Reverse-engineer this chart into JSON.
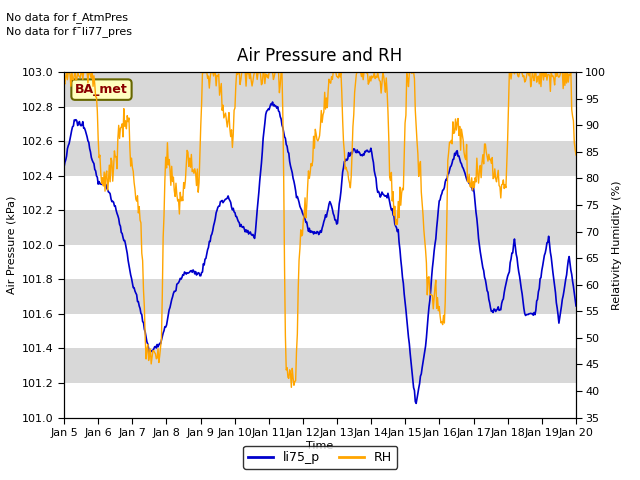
{
  "title": "Air Pressure and RH",
  "xlabel": "Time",
  "ylabel_left": "Air Pressure (kPa)",
  "ylabel_right": "Relativity Humidity (%)",
  "annotation_line1": "No data for f_AtmPres",
  "annotation_line2": "No data for f¯li77_pres",
  "station_label": "BA_met",
  "legend_labels": [
    "li75_p",
    "RH"
  ],
  "line_color_pressure": "#0000CC",
  "line_color_rh": "#FFA500",
  "bg_color": "#D8D8D8",
  "ylim_left": [
    101.0,
    103.0
  ],
  "ylim_right": [
    35,
    100
  ],
  "yticks_left": [
    101.0,
    101.2,
    101.4,
    101.6,
    101.8,
    102.0,
    102.2,
    102.4,
    102.6,
    102.8,
    103.0
  ],
  "yticks_right": [
    35,
    40,
    45,
    50,
    55,
    60,
    65,
    70,
    75,
    80,
    85,
    90,
    95,
    100
  ],
  "x_tick_labels": [
    "Jan 5",
    "Jan 6",
    "Jan 7",
    "Jan 8",
    "Jan 9",
    "Jan 10",
    "Jan 11",
    "Jan 12",
    "Jan 13",
    "Jan 14",
    "Jan 15",
    "Jan 16",
    "Jan 17",
    "Jan 18",
    "Jan 19",
    "Jan 20"
  ],
  "title_fontsize": 12,
  "label_fontsize": 8,
  "tick_fontsize": 8,
  "annot_fontsize": 8,
  "legend_fontsize": 9,
  "figsize": [
    6.4,
    4.8
  ],
  "dpi": 100
}
